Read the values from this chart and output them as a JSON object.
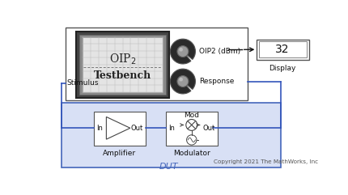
{
  "bg_color": "#ffffff",
  "dut_bg": "#d8e0f5",
  "dut_border": "#4466bb",
  "testbench_bg": "#ffffff",
  "testbench_border": "#555555",
  "display_bg": "#ffffff",
  "display_border": "#555555",
  "amp_border": "#555555",
  "mod_border": "#555555",
  "grid_color": "#bbbbbb",
  "screen_bg": "#e4e4e4",
  "screen_frame": "#555555",
  "screen_dark": "#444444",
  "line_color": "#3355bb",
  "arrow_color": "#111111",
  "text_color": "#111111",
  "copyright_color": "#555555",
  "copyright_text": "Copyright 2021 The MathWorks, Inc",
  "display_value": "32",
  "oip2_label": "OIP2 (dBm)",
  "response_label": "Response",
  "stimulus_label": "Stimulus",
  "amplifier_label": "Amplifier",
  "modulator_label": "Modulator",
  "dut_label": "DUT",
  "display_label": "Display",
  "testbench_title": "Testbench",
  "mod_label": "Mod",
  "knob_dark": "#2a2a2a",
  "knob_gray": "#999999",
  "knob_light": "#cccccc"
}
